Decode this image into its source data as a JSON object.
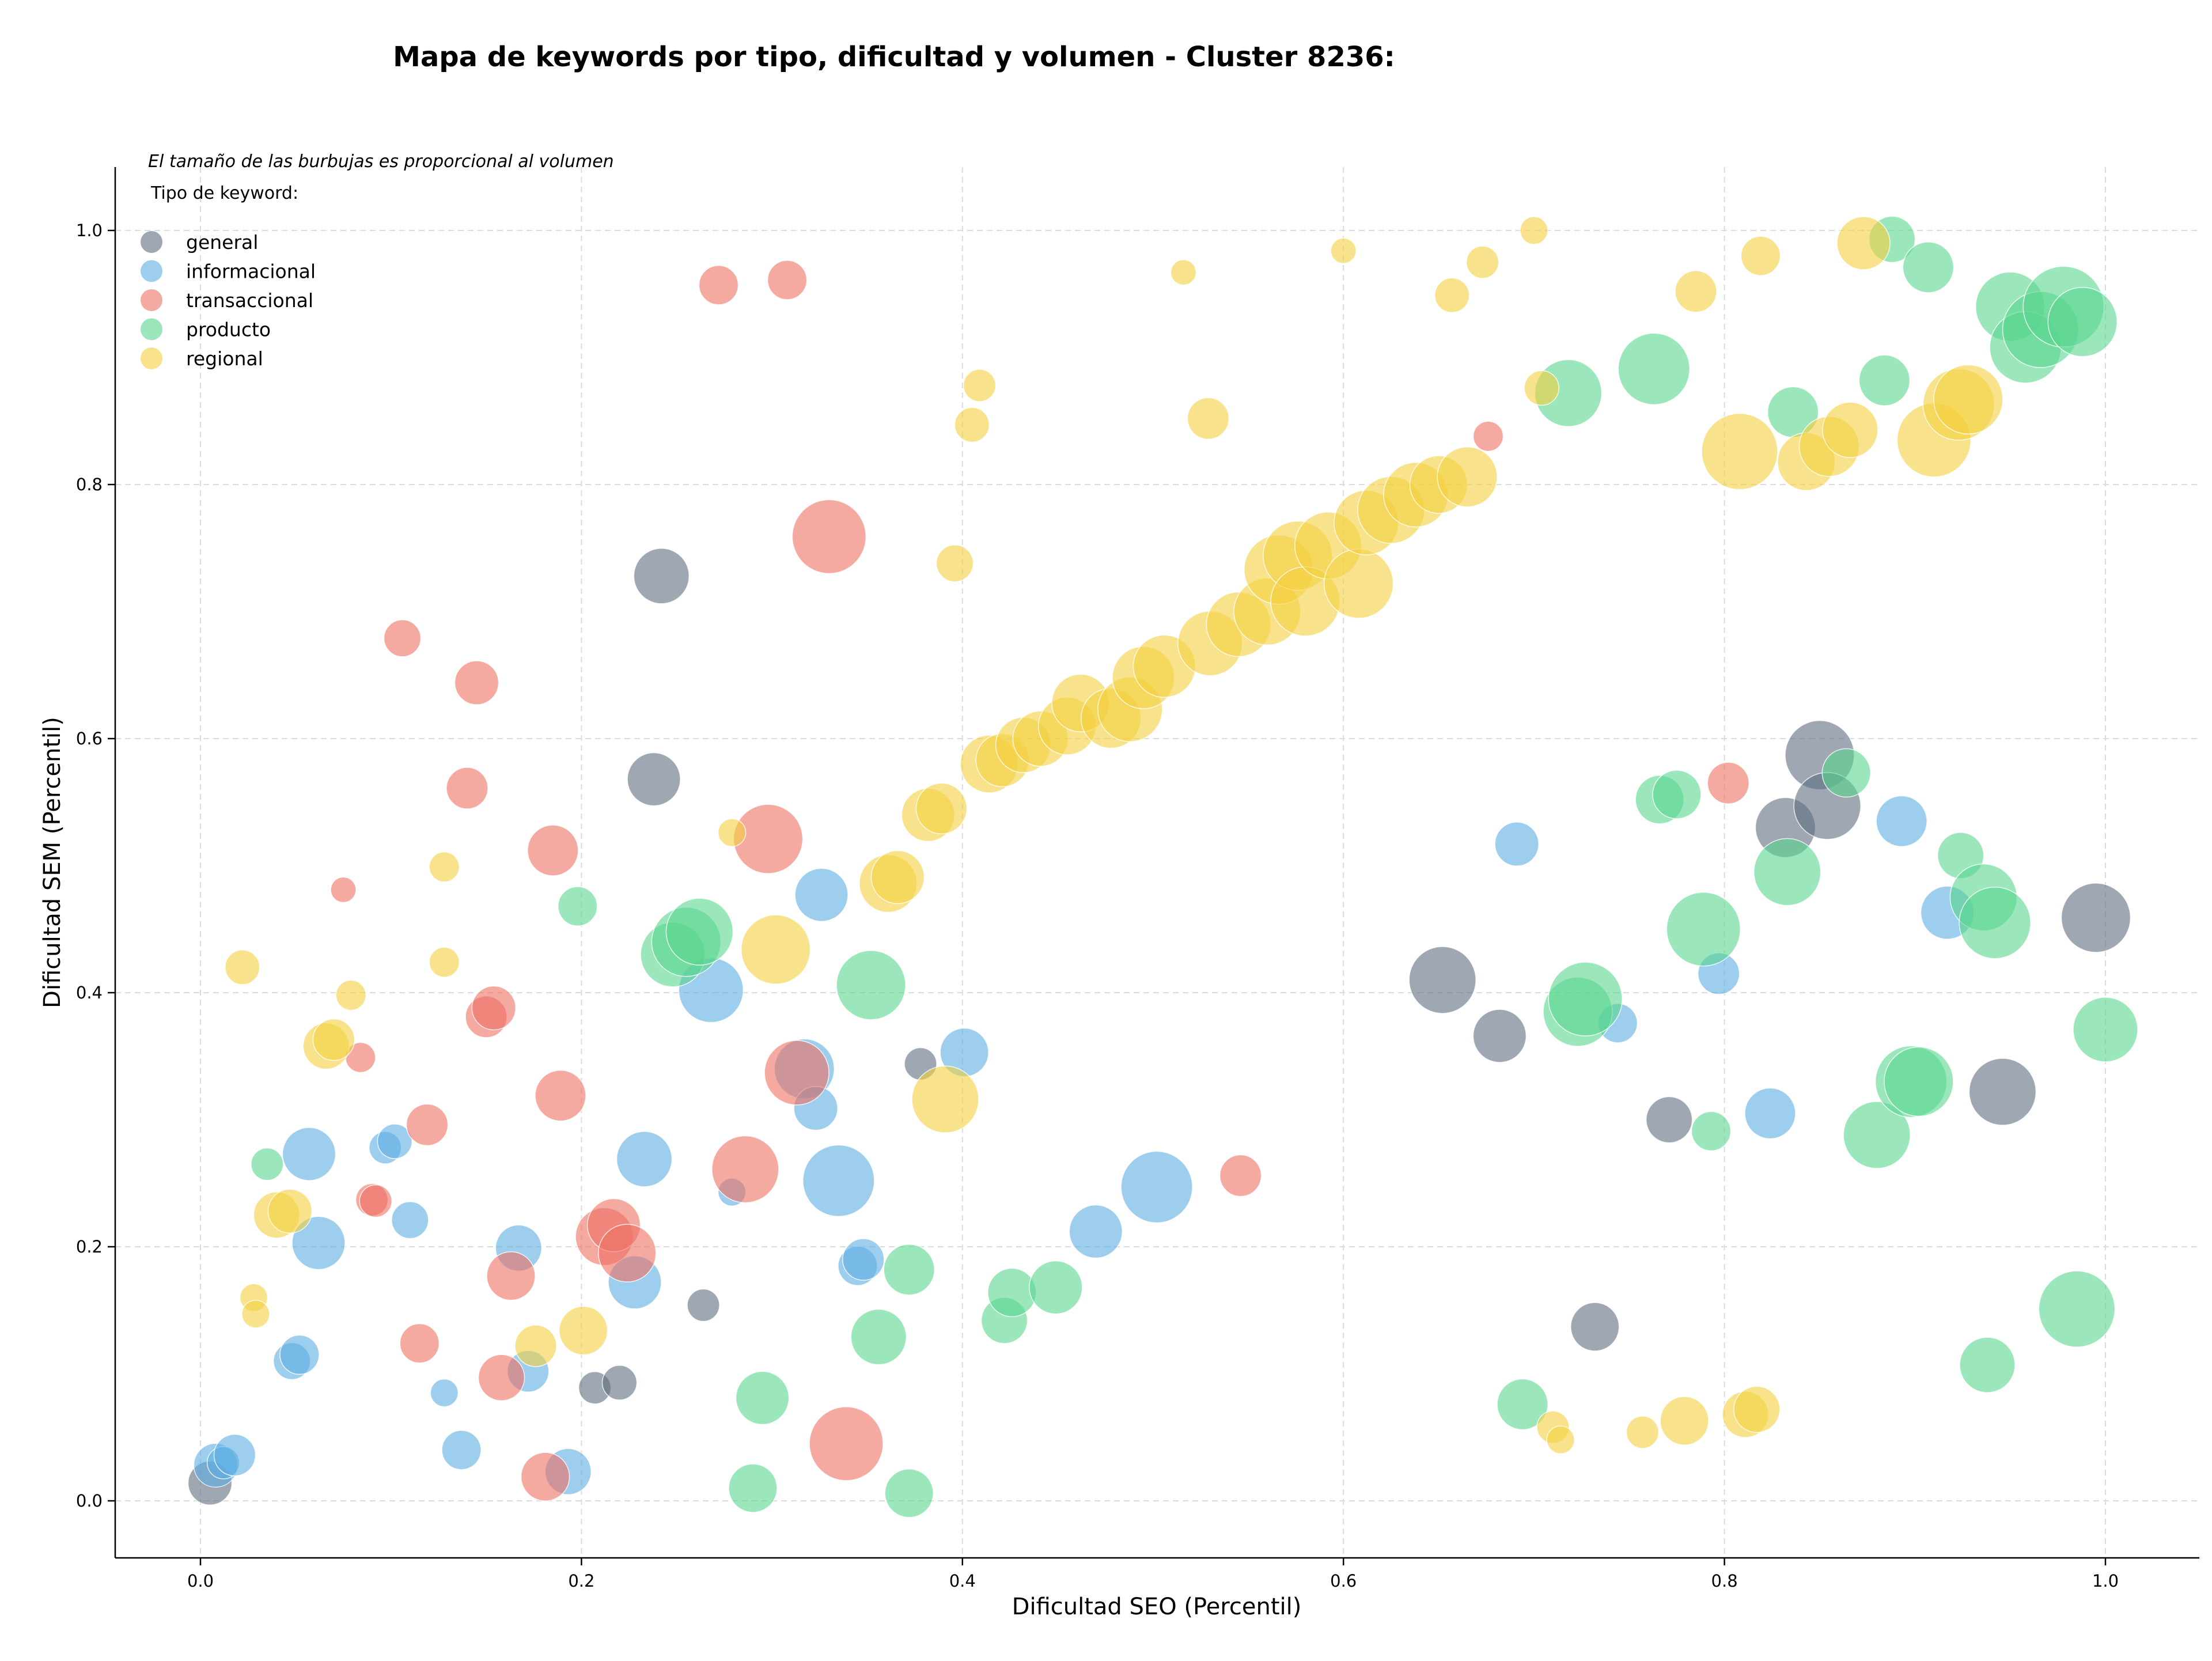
{
  "chart_data": {
    "type": "scatter",
    "title": "Mapa de keywords por tipo, dificultad y volumen - Cluster 8236:",
    "xlabel": "Dificultad SEO (Percentil)",
    "ylabel": "Dificultad SEM (Percentil)",
    "xlim": [
      -0.045,
      1.05
    ],
    "ylim": [
      -0.045,
      1.05
    ],
    "xticks": [
      "0.0",
      "0.2",
      "0.4",
      "0.6",
      "0.8",
      "1.0"
    ],
    "yticks": [
      "0.0",
      "0.2",
      "0.4",
      "0.6",
      "0.8",
      "1.0"
    ],
    "grid": true,
    "legend_placement": "top-left",
    "note": "El tamaño de las burbujas es proporcional al volumen",
    "legend_title": "Tipo de keyword:",
    "series": [
      {
        "name": "general",
        "color": "#5d6d7e",
        "points": [
          [
            0.005,
            0.014,
            38
          ],
          [
            0.242,
            0.728,
            48
          ],
          [
            0.238,
            0.568,
            46
          ],
          [
            0.378,
            0.344,
            28
          ],
          [
            0.264,
            0.154,
            28
          ],
          [
            0.207,
            0.089,
            28
          ],
          [
            0.22,
            0.093,
            30
          ],
          [
            0.652,
            0.41,
            58
          ],
          [
            0.682,
            0.366,
            46
          ],
          [
            0.732,
            0.137,
            42
          ],
          [
            0.771,
            0.3,
            40
          ],
          [
            0.832,
            0.53,
            52
          ],
          [
            0.85,
            0.587,
            60
          ],
          [
            0.854,
            0.547,
            58
          ],
          [
            0.946,
            0.322,
            58
          ],
          [
            0.995,
            0.459,
            60
          ]
        ]
      },
      {
        "name": "informacional",
        "color": "#5dade2",
        "points": [
          [
            0.008,
            0.028,
            38
          ],
          [
            0.012,
            0.03,
            28
          ],
          [
            0.018,
            0.036,
            36
          ],
          [
            0.048,
            0.11,
            32
          ],
          [
            0.052,
            0.115,
            34
          ],
          [
            0.057,
            0.273,
            46
          ],
          [
            0.062,
            0.203,
            46
          ],
          [
            0.097,
            0.278,
            28
          ],
          [
            0.102,
            0.283,
            30
          ],
          [
            0.11,
            0.221,
            32
          ],
          [
            0.128,
            0.085,
            24
          ],
          [
            0.137,
            0.04,
            34
          ],
          [
            0.167,
            0.199,
            40
          ],
          [
            0.172,
            0.102,
            36
          ],
          [
            0.193,
            0.023,
            40
          ],
          [
            0.228,
            0.172,
            46
          ],
          [
            0.233,
            0.269,
            48
          ],
          [
            0.268,
            0.402,
            56
          ],
          [
            0.279,
            0.243,
            24
          ],
          [
            0.317,
            0.34,
            52
          ],
          [
            0.323,
            0.309,
            38
          ],
          [
            0.326,
            0.477,
            46
          ],
          [
            0.335,
            0.252,
            62
          ],
          [
            0.345,
            0.185,
            34
          ],
          [
            0.348,
            0.19,
            36
          ],
          [
            0.401,
            0.353,
            42
          ],
          [
            0.47,
            0.212,
            46
          ],
          [
            0.502,
            0.247,
            62
          ],
          [
            0.691,
            0.517,
            38
          ],
          [
            0.744,
            0.376,
            34
          ],
          [
            0.797,
            0.415,
            36
          ],
          [
            0.824,
            0.305,
            44
          ],
          [
            0.893,
            0.535,
            44
          ],
          [
            0.917,
            0.463,
            46
          ]
        ]
      },
      {
        "name": "transaccional",
        "color": "#ec7063",
        "points": [
          [
            0.075,
            0.481,
            22
          ],
          [
            0.084,
            0.349,
            26
          ],
          [
            0.09,
            0.237,
            28
          ],
          [
            0.092,
            0.236,
            28
          ],
          [
            0.106,
            0.679,
            32
          ],
          [
            0.115,
            0.124,
            34
          ],
          [
            0.119,
            0.296,
            36
          ],
          [
            0.14,
            0.561,
            36
          ],
          [
            0.145,
            0.644,
            38
          ],
          [
            0.15,
            0.381,
            36
          ],
          [
            0.154,
            0.388,
            38
          ],
          [
            0.158,
            0.097,
            40
          ],
          [
            0.163,
            0.177,
            42
          ],
          [
            0.181,
            0.019,
            42
          ],
          [
            0.185,
            0.512,
            44
          ],
          [
            0.189,
            0.319,
            44
          ],
          [
            0.212,
            0.208,
            50
          ],
          [
            0.217,
            0.217,
            46
          ],
          [
            0.224,
            0.195,
            50
          ],
          [
            0.272,
            0.957,
            34
          ],
          [
            0.286,
            0.261,
            58
          ],
          [
            0.298,
            0.521,
            60
          ],
          [
            0.308,
            0.961,
            34
          ],
          [
            0.313,
            0.337,
            56
          ],
          [
            0.33,
            0.759,
            64
          ],
          [
            0.339,
            0.045,
            64
          ],
          [
            0.546,
            0.256,
            36
          ],
          [
            0.676,
            0.838,
            26
          ],
          [
            0.802,
            0.565,
            36
          ]
        ]
      },
      {
        "name": "producto",
        "color": "#58d68d",
        "points": [
          [
            0.035,
            0.265,
            28
          ],
          [
            0.198,
            0.468,
            34
          ],
          [
            0.248,
            0.43,
            56
          ],
          [
            0.255,
            0.44,
            60
          ],
          [
            0.262,
            0.448,
            58
          ],
          [
            0.29,
            0.01,
            42
          ],
          [
            0.295,
            0.081,
            46
          ],
          [
            0.352,
            0.406,
            60
          ],
          [
            0.356,
            0.129,
            48
          ],
          [
            0.372,
            0.182,
            44
          ],
          [
            0.372,
            0.006,
            42
          ],
          [
            0.422,
            0.142,
            40
          ],
          [
            0.426,
            0.164,
            42
          ],
          [
            0.449,
            0.168,
            46
          ],
          [
            0.694,
            0.076,
            44
          ],
          [
            0.718,
            0.872,
            58
          ],
          [
            0.723,
            0.385,
            60
          ],
          [
            0.727,
            0.395,
            64
          ],
          [
            0.763,
            0.891,
            62
          ],
          [
            0.766,
            0.552,
            42
          ],
          [
            0.775,
            0.556,
            42
          ],
          [
            0.789,
            0.45,
            64
          ],
          [
            0.793,
            0.291,
            34
          ],
          [
            0.833,
            0.495,
            58
          ],
          [
            0.836,
            0.857,
            44
          ],
          [
            0.864,
            0.573,
            42
          ],
          [
            0.88,
            0.288,
            58
          ],
          [
            0.884,
            0.882,
            44
          ],
          [
            0.888,
            0.993,
            40
          ],
          [
            0.898,
            0.33,
            62
          ],
          [
            0.902,
            0.33,
            60
          ],
          [
            0.907,
            0.971,
            44
          ],
          [
            0.924,
            0.508,
            40
          ],
          [
            0.936,
            0.475,
            58
          ],
          [
            0.938,
            0.107,
            48
          ],
          [
            0.942,
            0.455,
            62
          ],
          [
            0.95,
            0.94,
            60
          ],
          [
            0.958,
            0.908,
            62
          ],
          [
            0.966,
            0.922,
            66
          ],
          [
            0.978,
            0.94,
            70
          ],
          [
            0.985,
            0.151,
            66
          ],
          [
            0.988,
            0.928,
            60
          ],
          [
            1.0,
            0.371,
            56
          ]
        ]
      },
      {
        "name": "regional",
        "color": "#f4d03f",
        "points": [
          [
            0.022,
            0.42,
            30
          ],
          [
            0.028,
            0.16,
            24
          ],
          [
            0.029,
            0.147,
            24
          ],
          [
            0.04,
            0.225,
            40
          ],
          [
            0.047,
            0.228,
            38
          ],
          [
            0.066,
            0.358,
            40
          ],
          [
            0.07,
            0.363,
            36
          ],
          [
            0.079,
            0.398,
            26
          ],
          [
            0.128,
            0.499,
            26
          ],
          [
            0.128,
            0.424,
            26
          ],
          [
            0.176,
            0.122,
            36
          ],
          [
            0.201,
            0.134,
            42
          ],
          [
            0.279,
            0.526,
            24
          ],
          [
            0.302,
            0.434,
            60
          ],
          [
            0.361,
            0.486,
            50
          ],
          [
            0.366,
            0.491,
            46
          ],
          [
            0.382,
            0.54,
            46
          ],
          [
            0.389,
            0.545,
            44
          ],
          [
            0.391,
            0.316,
            58
          ],
          [
            0.396,
            0.738,
            32
          ],
          [
            0.405,
            0.847,
            30
          ],
          [
            0.409,
            0.878,
            28
          ],
          [
            0.414,
            0.58,
            50
          ],
          [
            0.421,
            0.583,
            46
          ],
          [
            0.432,
            0.595,
            48
          ],
          [
            0.441,
            0.6,
            48
          ],
          [
            0.455,
            0.61,
            50
          ],
          [
            0.462,
            0.628,
            50
          ],
          [
            0.478,
            0.616,
            52
          ],
          [
            0.488,
            0.623,
            56
          ],
          [
            0.495,
            0.648,
            54
          ],
          [
            0.506,
            0.657,
            54
          ],
          [
            0.516,
            0.967,
            22
          ],
          [
            0.529,
            0.852,
            36
          ],
          [
            0.53,
            0.675,
            56
          ],
          [
            0.545,
            0.69,
            56
          ],
          [
            0.56,
            0.7,
            58
          ],
          [
            0.566,
            0.733,
            60
          ],
          [
            0.576,
            0.744,
            60
          ],
          [
            0.58,
            0.708,
            60
          ],
          [
            0.592,
            0.752,
            58
          ],
          [
            0.6,
            0.984,
            22
          ],
          [
            0.608,
            0.722,
            60
          ],
          [
            0.612,
            0.77,
            56
          ],
          [
            0.625,
            0.78,
            58
          ],
          [
            0.638,
            0.792,
            56
          ],
          [
            0.65,
            0.8,
            50
          ],
          [
            0.657,
            0.949,
            30
          ],
          [
            0.665,
            0.806,
            52
          ],
          [
            0.673,
            0.975,
            28
          ],
          [
            0.7,
            1.0,
            24
          ],
          [
            0.704,
            0.876,
            30
          ],
          [
            0.71,
            0.058,
            28
          ],
          [
            0.714,
            0.048,
            24
          ],
          [
            0.757,
            0.054,
            28
          ],
          [
            0.779,
            0.063,
            42
          ],
          [
            0.785,
            0.952,
            36
          ],
          [
            0.808,
            0.826,
            66
          ],
          [
            0.811,
            0.068,
            40
          ],
          [
            0.817,
            0.072,
            40
          ],
          [
            0.819,
            0.98,
            34
          ],
          [
            0.843,
            0.818,
            50
          ],
          [
            0.855,
            0.83,
            52
          ],
          [
            0.866,
            0.843,
            48
          ],
          [
            0.873,
            0.99,
            46
          ],
          [
            0.91,
            0.835,
            64
          ],
          [
            0.923,
            0.863,
            62
          ],
          [
            0.928,
            0.867,
            60
          ]
        ]
      }
    ]
  }
}
